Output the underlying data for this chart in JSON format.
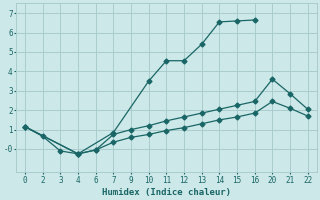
{
  "xlabel": "Humidex (Indice chaleur)",
  "bg_color": "#cce8e8",
  "grid_color": "#aacccc",
  "line_color": "#1a6666",
  "xlim": [
    -0.5,
    16.5
  ],
  "ylim": [
    -1.2,
    7.5
  ],
  "xtick_positions": [
    0,
    1,
    2,
    3,
    4,
    5,
    6,
    7,
    8,
    9,
    10,
    11,
    12,
    13,
    14,
    15,
    16
  ],
  "xtick_labels": [
    "0",
    "2",
    "3",
    "4",
    "6",
    "7",
    "9",
    "10",
    "11",
    "12",
    "13",
    "14",
    "15",
    "16",
    "20",
    "21",
    "22"
  ],
  "yticks": [
    0,
    1,
    2,
    3,
    4,
    5,
    6,
    7
  ],
  "series1_x": [
    0,
    1,
    2,
    3,
    5,
    7,
    8,
    9,
    10,
    11,
    12,
    13
  ],
  "series1_y": [
    1.15,
    0.65,
    -0.1,
    -0.25,
    0.85,
    3.5,
    4.55,
    4.55,
    5.4,
    6.55,
    6.6,
    6.65
  ],
  "series2_x": [
    0,
    3,
    4,
    5,
    6,
    7,
    8,
    9,
    10,
    11,
    12,
    13,
    14,
    15,
    16
  ],
  "series2_y": [
    1.15,
    -0.25,
    -0.05,
    0.75,
    1.0,
    1.2,
    1.45,
    1.65,
    1.85,
    2.05,
    2.25,
    2.45,
    3.6,
    2.85,
    2.05
  ],
  "series3_x": [
    0,
    3,
    4,
    5,
    6,
    7,
    8,
    9,
    10,
    11,
    12,
    13,
    14,
    15,
    16
  ],
  "series3_y": [
    1.15,
    -0.25,
    -0.05,
    0.35,
    0.6,
    0.75,
    0.95,
    1.1,
    1.3,
    1.5,
    1.65,
    1.85,
    2.45,
    2.1,
    1.7
  ],
  "marker": "D",
  "markersize": 2.5,
  "linewidth": 0.9
}
